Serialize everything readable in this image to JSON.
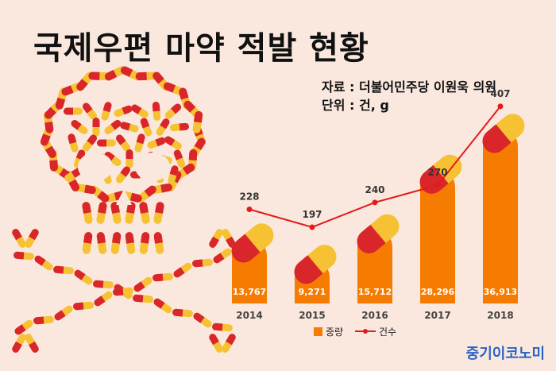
{
  "title": "국제우편 마약 적발 현황",
  "source": "자료 : 더불어민주당 이원욱 의원",
  "unit": "단위 : 건, g",
  "brand": "중기이코노미",
  "colors": {
    "bar": "#f57c00",
    "line": "#e41a1c",
    "background": "#fae8de",
    "capsule_red": "#d9262b",
    "capsule_yellow": "#f6c233"
  },
  "chart_data": {
    "type": "bar",
    "categories": [
      "2014",
      "2015",
      "2016",
      "2017",
      "2018"
    ],
    "series": [
      {
        "name": "중량",
        "type": "bar",
        "values": [
          13767,
          9271,
          15712,
          28296,
          36913
        ],
        "labels": [
          "13,767",
          "9,271",
          "15,712",
          "28,296",
          "36,913"
        ]
      },
      {
        "name": "건수",
        "type": "line",
        "values": [
          228,
          197,
          240,
          270,
          407
        ],
        "labels": [
          "228",
          "197",
          "240",
          "270",
          "407"
        ]
      }
    ],
    "legend_position": "bottom",
    "grid": false
  }
}
